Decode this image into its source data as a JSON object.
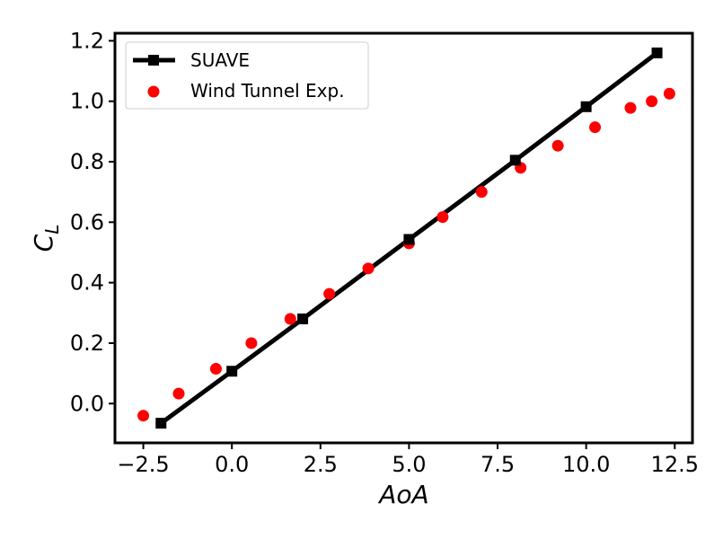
{
  "chart_data": {
    "type": "scatter",
    "xlabel": "AoA",
    "ylabel_main": "C",
    "ylabel_sub": "L",
    "xlim": [
      -3.3,
      13.0
    ],
    "ylim": [
      -0.13,
      1.225
    ],
    "xticks": [
      -2.5,
      0.0,
      2.5,
      5.0,
      7.5,
      10.0,
      12.5
    ],
    "xtick_labels": [
      "−2.5",
      "0.0",
      "2.5",
      "5.0",
      "7.5",
      "10.0",
      "12.5"
    ],
    "yticks": [
      0.0,
      0.2,
      0.4,
      0.6,
      0.8,
      1.0,
      1.2
    ],
    "ytick_labels": [
      "0.0",
      "0.2",
      "0.4",
      "0.6",
      "0.8",
      "1.0",
      "1.2"
    ],
    "grid": false,
    "legend_position": "top-left",
    "series": [
      {
        "name": "SUAVE",
        "kind": "line",
        "marker": "square",
        "color": "#000000",
        "x": [
          -2,
          0,
          2,
          5,
          8,
          10,
          12
        ],
        "y": [
          -0.065,
          0.107,
          0.28,
          0.543,
          0.805,
          0.982,
          1.16
        ]
      },
      {
        "name": "Wind Tunnel Exp.",
        "kind": "scatter",
        "marker": "circle",
        "color": "#ff0000",
        "x": [
          -2.5,
          -1.5,
          -0.45,
          0.55,
          1.65,
          2.75,
          3.85,
          5.0,
          5.95,
          7.05,
          8.15,
          9.2,
          10.25,
          11.25,
          11.85,
          12.35
        ],
        "y": [
          -0.04,
          0.033,
          0.115,
          0.2,
          0.28,
          0.363,
          0.447,
          0.53,
          0.617,
          0.7,
          0.78,
          0.853,
          0.914,
          0.978,
          1.0,
          1.025
        ]
      }
    ]
  }
}
